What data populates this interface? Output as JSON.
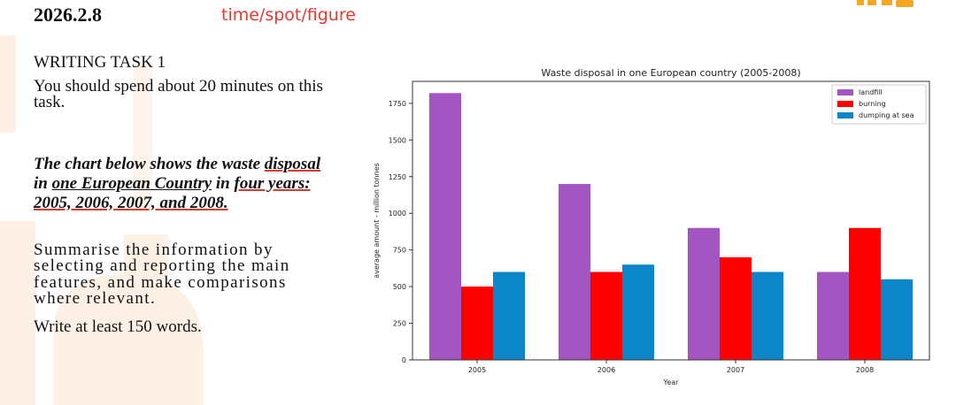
{
  "header": {
    "date": "2026.2.8",
    "tag": "time/spot/figure"
  },
  "task": {
    "heading": "WRITING TASK 1",
    "time_instruction": "You should spend about 20 minutes on this task.",
    "prompt_parts": [
      "The chart below shows the waste ",
      "disposal",
      " in ",
      "one European Country",
      " in ",
      "four years: 2005, 2006, 2007, and 2008."
    ],
    "summary": "Summarise the information by selecting and reporting the main features, and make comparisons where relevant.",
    "word_count": "Write at least 150 words."
  },
  "colors": {
    "landfill": "#a355c2",
    "burning": "#ff0000",
    "dumping": "#0b86c8",
    "accent": "#e8392b"
  },
  "chart_data": {
    "type": "bar",
    "title": "Waste disposal in one European country (2005-2008)",
    "xlabel": "Year",
    "ylabel": "average amount - million tonnes",
    "categories": [
      "2005",
      "2006",
      "2007",
      "2008"
    ],
    "series": [
      {
        "name": "landfill",
        "values": [
          1820,
          1200,
          900,
          600
        ]
      },
      {
        "name": "burning",
        "values": [
          500,
          600,
          700,
          900
        ]
      },
      {
        "name": "dumping at sea",
        "values": [
          600,
          650,
          600,
          550
        ]
      }
    ],
    "ylim": [
      0,
      1900
    ],
    "yticks": [
      0,
      250,
      500,
      750,
      1000,
      1250,
      1500,
      1750
    ],
    "legend": "top-right",
    "grid": false
  }
}
